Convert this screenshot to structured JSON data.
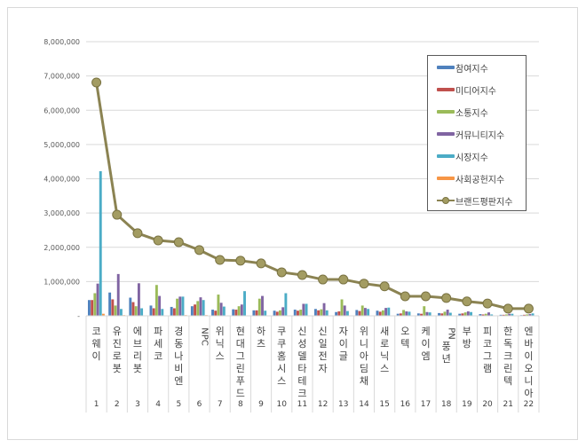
{
  "chart_data": {
    "type": "bar",
    "combo": "clustered bar + line",
    "title": "",
    "xlabel": "",
    "ylabel": "",
    "ylim": [
      0,
      8000000
    ],
    "y_ticks": [
      "-",
      "1,000,000",
      "2,000,000",
      "3,000,000",
      "4,000,000",
      "5,000,000",
      "6,000,000",
      "7,000,000",
      "8,000,000"
    ],
    "y_tick_values": [
      0,
      1000000,
      2000000,
      3000000,
      4000000,
      5000000,
      6000000,
      7000000,
      8000000
    ],
    "grid": true,
    "legend_position": "top-right inside",
    "ranks": [
      "1",
      "2",
      "3",
      "4",
      "5",
      "6",
      "7",
      "8",
      "9",
      "10",
      "11",
      "12",
      "13",
      "14",
      "15",
      "16",
      "17",
      "18",
      "19",
      "20",
      "21",
      "22"
    ],
    "categories": [
      "코웨이",
      "유진로봇",
      "에브리봇",
      "파세코",
      "경동나비엔",
      "NPC",
      "위닉스",
      "현대그린푸드",
      "하츠",
      "쿠쿠홈시스",
      "신성델타테크",
      "신일전자",
      "자이글",
      "위니아딤채",
      "새로닉스",
      "오텍",
      "케이엠",
      "PN풍년",
      "부방",
      "피코그램",
      "한독크린텍",
      "엔바이오니아"
    ],
    "series": [
      {
        "name": "참여지수",
        "kind": "bar",
        "color": "#4f81bd",
        "values": [
          460000,
          680000,
          530000,
          300000,
          260000,
          280000,
          180000,
          190000,
          160000,
          150000,
          180000,
          200000,
          110000,
          170000,
          150000,
          60000,
          70000,
          80000,
          60000,
          50000,
          30000,
          20000
        ]
      },
      {
        "name": "미디어지수",
        "kind": "bar",
        "color": "#c0504d",
        "values": [
          460000,
          480000,
          400000,
          220000,
          220000,
          330000,
          150000,
          180000,
          160000,
          120000,
          150000,
          160000,
          130000,
          140000,
          120000,
          70000,
          60000,
          70000,
          70000,
          40000,
          30000,
          30000
        ]
      },
      {
        "name": "소통지수",
        "kind": "bar",
        "color": "#9bbb59",
        "values": [
          660000,
          300000,
          280000,
          900000,
          500000,
          430000,
          620000,
          280000,
          500000,
          160000,
          180000,
          190000,
          480000,
          300000,
          160000,
          170000,
          280000,
          120000,
          100000,
          60000,
          40000,
          40000
        ]
      },
      {
        "name": "커뮤니티지수",
        "kind": "bar",
        "color": "#8064a2",
        "values": [
          940000,
          1220000,
          950000,
          580000,
          560000,
          540000,
          380000,
          330000,
          580000,
          250000,
          350000,
          370000,
          300000,
          230000,
          230000,
          130000,
          110000,
          180000,
          130000,
          100000,
          60000,
          50000
        ]
      },
      {
        "name": "시장지수",
        "kind": "bar",
        "color": "#4bacc6",
        "values": [
          4220000,
          200000,
          220000,
          200000,
          560000,
          460000,
          270000,
          720000,
          150000,
          660000,
          350000,
          160000,
          140000,
          200000,
          240000,
          120000,
          100000,
          90000,
          110000,
          40000,
          60000,
          70000
        ]
      },
      {
        "name": "사회공헌지수",
        "kind": "bar",
        "color": "#f79646",
        "values": [
          60000,
          20000,
          10000,
          10000,
          20000,
          20000,
          10000,
          10000,
          10000,
          10000,
          10000,
          10000,
          10000,
          10000,
          10000,
          5000,
          5000,
          5000,
          5000,
          5000,
          5000,
          5000
        ]
      },
      {
        "name": "브랜드평판지수",
        "kind": "line",
        "color": "#8b8352",
        "marker_color": "#a39c62",
        "values": [
          6810000,
          2950000,
          2410000,
          2200000,
          2150000,
          1920000,
          1630000,
          1610000,
          1530000,
          1270000,
          1190000,
          1060000,
          1060000,
          940000,
          860000,
          570000,
          570000,
          520000,
          420000,
          360000,
          210000,
          210000
        ]
      }
    ]
  },
  "legend": {
    "items": [
      {
        "label": "참여지수",
        "color": "#4f81bd",
        "type": "bar"
      },
      {
        "label": "미디어지수",
        "color": "#c0504d",
        "type": "bar"
      },
      {
        "label": "소통지수",
        "color": "#9bbb59",
        "type": "bar"
      },
      {
        "label": "커뮤니티지수",
        "color": "#8064a2",
        "type": "bar"
      },
      {
        "label": "시장지수",
        "color": "#4bacc6",
        "type": "bar"
      },
      {
        "label": "사회공헌지수",
        "color": "#f79646",
        "type": "bar"
      },
      {
        "label": "브랜드평판지수",
        "color": "#8b8352",
        "type": "line"
      }
    ]
  }
}
